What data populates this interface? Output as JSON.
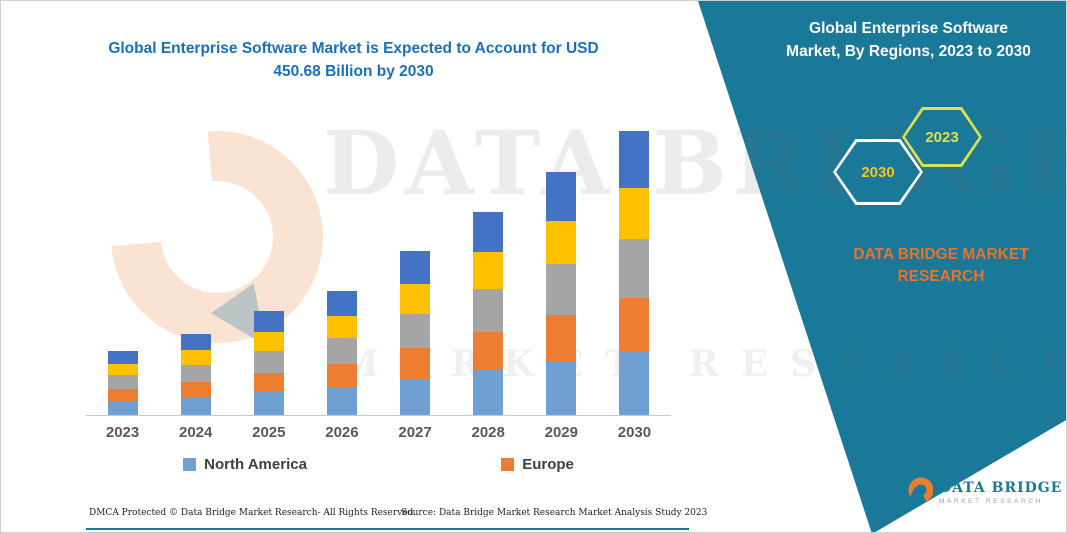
{
  "title": {
    "line1": "Global Enterprise Software Market is Expected to Account for USD",
    "line2": "450.68 Billion by 2030"
  },
  "banner": {
    "line1": "Global Enterprise Software",
    "line2": "Market, By Regions, 2023 to 2030"
  },
  "hexagons": {
    "left_year": "2030",
    "right_year": "2023"
  },
  "brand": {
    "line1": "DATA BRIDGE MARKET",
    "line2": "RESEARCH"
  },
  "watermark": {
    "line1": "DATA BRIDGE",
    "line2": "MARKET RESEARCH"
  },
  "corner_logo": {
    "name": "DATA BRIDGE",
    "subtitle": "MARKET RESEARCH"
  },
  "footer": {
    "dmca": "DMCA Protected © Data Bridge Market Research-  All Rights Reserved.",
    "source": "Source: Data Bridge Market Research  Market Analysis Study 2023"
  },
  "colors": {
    "teal_banner": "#1a7898",
    "title_blue": "#1a6fba",
    "brand_orange": "#e8732a",
    "hex_2030_outline": "#ffffff",
    "hex_2030_text": "#f6c51d",
    "hex_2023_outline": "#dce24c",
    "axis_label_gray": "#595959"
  },
  "chart_data": {
    "type": "bar",
    "subtype": "stacked",
    "title": "Global Enterprise Software Market is Expected to Account for USD 450.68 Billion by 2030",
    "xlabel": "",
    "ylabel": "",
    "ylim": [
      0,
      480
    ],
    "grid": false,
    "legend_position": "bottom",
    "categories": [
      "2023",
      "2024",
      "2025",
      "2026",
      "2027",
      "2028",
      "2029",
      "2030"
    ],
    "totals_estimated_usd_billion": [
      101.5,
      128.8,
      164.2,
      196.4,
      259.1,
      322.0,
      384.9,
      450.68
    ],
    "series": [
      {
        "name": "North America",
        "color": "#6fa0d4",
        "values": [
          22.3,
          28.3,
          36.1,
          43.2,
          57.0,
          70.8,
          84.7,
          99.1
        ]
      },
      {
        "name": "Europe",
        "color": "#ed7d31",
        "values": [
          19.3,
          24.5,
          31.2,
          37.3,
          49.2,
          61.2,
          73.1,
          85.6
        ]
      },
      {
        "name": "unlabeled-gray",
        "color": "#a5a5a5",
        "values": [
          21.3,
          27.0,
          34.5,
          41.2,
          54.4,
          67.6,
          80.8,
          94.6
        ]
      },
      {
        "name": "unlabeled-yellow",
        "color": "#ffc000",
        "values": [
          18.3,
          23.2,
          29.6,
          35.4,
          46.7,
          58.0,
          69.3,
          81.1
        ]
      },
      {
        "name": "unlabeled-dark-blue",
        "color": "#4472c4",
        "values": [
          20.3,
          25.8,
          32.8,
          39.3,
          51.8,
          64.4,
          77.0,
          90.1
        ]
      }
    ],
    "legend": [
      {
        "label": "North America"
      },
      {
        "label": "Europe"
      }
    ]
  }
}
